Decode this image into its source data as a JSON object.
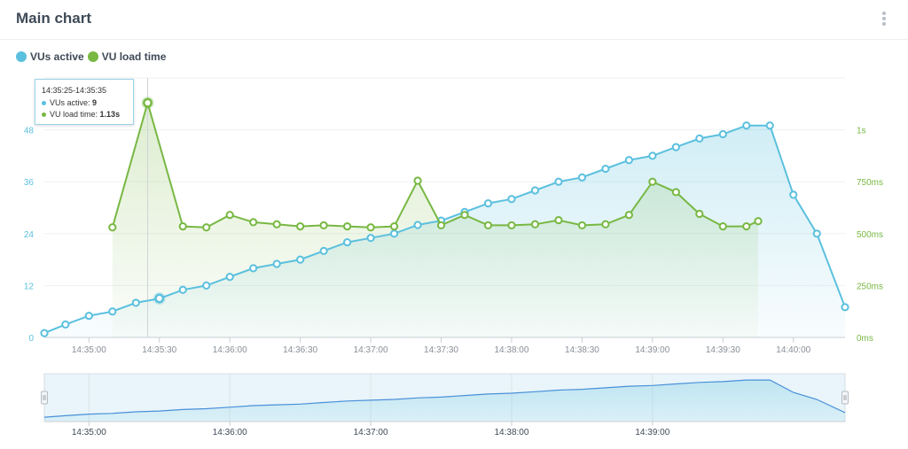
{
  "title": "Main chart",
  "menu_icon": "vertical-dots-icon",
  "colors": {
    "vus": "#5bc0de",
    "load": "#78b843",
    "axis_left": "#5bc0de",
    "axis_right": "#78b843",
    "grid": "#eef1f4"
  },
  "legend": [
    {
      "label": "VUs active",
      "color": "#5bc0de"
    },
    {
      "label": "VU load time",
      "color": "#78b843"
    }
  ],
  "tooltip": {
    "time": "14:35:25-14:35:35",
    "vus_label": "VUs active: ",
    "vus_value": "9",
    "load_label": "VU load time: ",
    "load_value": "1.13s"
  },
  "chart_data": {
    "type": "line",
    "x_ticks": [
      "14:35:00",
      "14:35:30",
      "14:36:00",
      "14:36:30",
      "14:37:00",
      "14:37:30",
      "14:38:00",
      "14:38:30",
      "14:39:00",
      "14:39:30",
      "14:40:00"
    ],
    "x_range": [
      "14:34:41",
      "14:40:22"
    ],
    "y_left": {
      "ticks": [
        "0",
        "12",
        "24",
        "36",
        "48"
      ],
      "range": [
        0,
        60
      ]
    },
    "y_right": {
      "ticks": [
        "0ms",
        "250ms",
        "500ms",
        "750ms",
        "1s"
      ],
      "range_ms": [
        0,
        1250
      ]
    },
    "series": [
      {
        "name": "VUs active",
        "axis": "left",
        "x": [
          "14:34:41",
          "14:34:50",
          "14:35:00",
          "14:35:10",
          "14:35:20",
          "14:35:30",
          "14:35:40",
          "14:35:50",
          "14:36:00",
          "14:36:10",
          "14:36:20",
          "14:36:30",
          "14:36:40",
          "14:36:50",
          "14:37:00",
          "14:37:10",
          "14:37:20",
          "14:37:30",
          "14:37:40",
          "14:37:50",
          "14:38:00",
          "14:38:10",
          "14:38:20",
          "14:38:30",
          "14:38:40",
          "14:38:50",
          "14:39:00",
          "14:39:10",
          "14:39:20",
          "14:39:30",
          "14:39:40",
          "14:39:50",
          "14:40:00",
          "14:40:10",
          "14:40:22"
        ],
        "values": [
          1,
          3,
          5,
          6,
          8,
          9,
          11,
          12,
          14,
          16,
          17,
          18,
          20,
          22,
          23,
          24,
          26,
          27,
          29,
          31,
          32,
          34,
          36,
          37,
          39,
          41,
          42,
          44,
          46,
          47,
          49,
          49,
          33,
          24,
          7
        ]
      },
      {
        "name": "VU load time",
        "axis": "right",
        "unit": "ms",
        "x": [
          "14:35:10",
          "14:35:25",
          "14:35:40",
          "14:35:50",
          "14:36:00",
          "14:36:10",
          "14:36:20",
          "14:36:30",
          "14:36:40",
          "14:36:50",
          "14:37:00",
          "14:37:10",
          "14:37:20",
          "14:37:30",
          "14:37:40",
          "14:37:50",
          "14:38:00",
          "14:38:10",
          "14:38:20",
          "14:38:30",
          "14:38:40",
          "14:38:50",
          "14:39:00",
          "14:39:10",
          "14:39:20",
          "14:39:30",
          "14:39:40",
          "14:39:45"
        ],
        "values": [
          530,
          1130,
          535,
          530,
          590,
          555,
          545,
          535,
          540,
          535,
          530,
          535,
          755,
          540,
          590,
          540,
          540,
          545,
          565,
          540,
          545,
          590,
          750,
          700,
          595,
          535,
          535,
          560
        ]
      }
    ],
    "navigator": {
      "x_ticks": [
        "14:35:00",
        "14:36:00",
        "14:37:00",
        "14:38:00",
        "14:39:00"
      ]
    },
    "grid": true,
    "legend_position": "top-left"
  }
}
